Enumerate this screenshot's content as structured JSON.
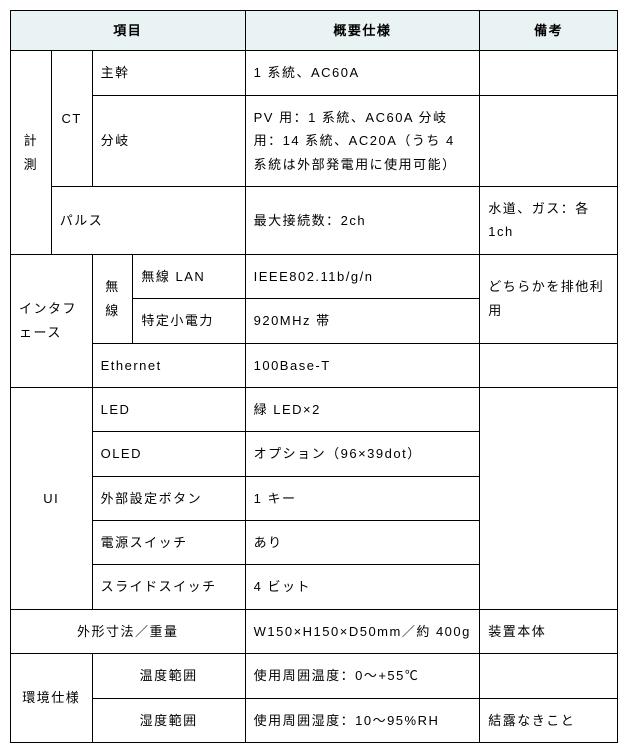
{
  "header": {
    "item": "項目",
    "spec": "概要仕様",
    "note": "備考"
  },
  "rows": {
    "measure": "計測",
    "ct": "CT",
    "ct_main": "主幹",
    "ct_main_spec": "1 系統、AC60A",
    "ct_branch": "分岐",
    "ct_branch_spec": "PV 用：1 系統、AC60A 分岐用：14 系統、AC20A（うち 4 系統は外部発電用に使用可能）",
    "pulse": "パルス",
    "pulse_spec": "最大接続数：2ch",
    "pulse_note": "水道、ガス：各 1ch",
    "interface": "インタフェース",
    "wireless": "無線",
    "wlan": "無線 LAN",
    "wlan_spec": "IEEE802.11b/g/n",
    "wlan_note": "どちらかを排他利用",
    "lowpower": "特定小電力",
    "lowpower_spec": "920MHz 帯",
    "ethernet": "Ethernet",
    "ethernet_spec": "100Base-T",
    "ui": "UI",
    "led": "LED",
    "led_spec": "緑 LED×2",
    "oled": "OLED",
    "oled_spec": "オプション（96×39dot）",
    "extbtn": "外部設定ボタン",
    "extbtn_spec": "1 キー",
    "pwrsw": "電源スイッチ",
    "pwrsw_spec": "あり",
    "slidesw": "スライドスイッチ",
    "slidesw_spec": "4 ビット",
    "dimensions": "外形寸法／重量",
    "dimensions_spec": "W150×H150×D50mm／約 400g",
    "dimensions_note": "装置本体",
    "env": "環境仕様",
    "temprange": "温度範囲",
    "temprange_spec": "使用周囲温度：0～+55℃",
    "humidrange": "湿度範囲",
    "humidrange_spec": "使用周囲湿度：10～95%RH",
    "humidrange_note": "結露なきこと"
  },
  "styles": {
    "header_bg": "#eaf3f3",
    "border_color": "#000000",
    "font_size": 13,
    "letter_spacing": 1.5
  }
}
